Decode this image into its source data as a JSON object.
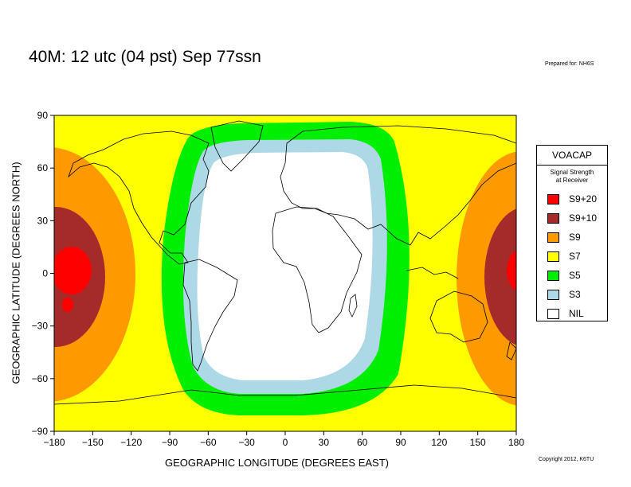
{
  "title": "40M:  12 utc (04 pst) Sep 77ssn",
  "prepared_for": "Prepared for: NH6S",
  "copyright": "Copyright 2012, K6TU",
  "axes": {
    "xlabel": "GEOGRAPHIC LONGITUDE (DEGREES EAST)",
    "ylabel": "GEOGRAPHIC LATITUDE (DEGREES NORTH)",
    "xticks": [
      "−180",
      "−150",
      "−120",
      "−90",
      "−60",
      "−30",
      "0",
      "30",
      "60",
      "90",
      "120",
      "150",
      "180"
    ],
    "yticks": [
      "90",
      "60",
      "30",
      "0",
      "−30",
      "−60",
      "−90"
    ],
    "xlim": [
      -180,
      180
    ],
    "ylim": [
      -90,
      90
    ]
  },
  "legend": {
    "title": "VOACAP",
    "subtitle_line1": "Signal Strength",
    "subtitle_line2": "at Receiver",
    "items": [
      {
        "label": "S9+20",
        "color": "#ff0000"
      },
      {
        "label": "S9+10",
        "color": "#a52a2a"
      },
      {
        "label": "S9",
        "color": "#ff9900"
      },
      {
        "label": "S7",
        "color": "#ffff00"
      },
      {
        "label": "S5",
        "color": "#00ee00"
      },
      {
        "label": "S3",
        "color": "#add8e6"
      },
      {
        "label": "NIL",
        "color": "#ffffff"
      }
    ]
  }
}
